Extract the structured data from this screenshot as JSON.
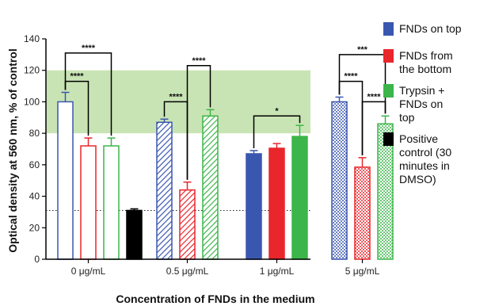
{
  "chart_data": {
    "type": "bar",
    "xlabel": "Concentration of FNDs in the medium",
    "ylabel": "Optical density at 560 nm, % of control",
    "ylim": [
      0,
      140
    ],
    "yticks": [
      0,
      20,
      40,
      60,
      80,
      100,
      120,
      140
    ],
    "grid": false,
    "legend_placement": "right",
    "highlight_band": {
      "from": 80,
      "to": 120,
      "color": "#c9e4b4"
    },
    "reference_line": {
      "y": 31,
      "style": "dotted"
    },
    "categories": [
      "0 μg/mL",
      "0.5 μg/mL",
      "1 μg/mL",
      "5 μg/mL"
    ],
    "series": [
      {
        "name": "FNDs on top",
        "color": "#3a57b0",
        "values": [
          100,
          87,
          67,
          100
        ],
        "errors": [
          6,
          2,
          2,
          3
        ],
        "fills": [
          "open",
          "hatch",
          "solid",
          "dots"
        ]
      },
      {
        "name": "FNDs from the bottom",
        "color": "#e8262c",
        "values": [
          72,
          44,
          70.5,
          58.5
        ],
        "errors": [
          5,
          5,
          3,
          6
        ],
        "fills": [
          "open",
          "hatch",
          "solid",
          "dots"
        ]
      },
      {
        "name": "Trypsin + FNDs on top",
        "color": "#3cb54a",
        "values": [
          72,
          91,
          78,
          86
        ],
        "errors": [
          5,
          4,
          7,
          5
        ],
        "fills": [
          "open",
          "hatch",
          "solid",
          "dots"
        ]
      },
      {
        "name": "Positive control (30 minutes in DMSO)",
        "color": "#000000",
        "values": [
          31,
          null,
          null,
          null
        ],
        "errors": [
          1,
          null,
          null,
          null
        ],
        "fills": [
          "solid"
        ]
      }
    ],
    "significance": [
      {
        "group": 0,
        "from": 0,
        "to": 1,
        "y": 113,
        "label": "****"
      },
      {
        "group": 0,
        "from": 0,
        "to": 2,
        "y": 131,
        "label": "****"
      },
      {
        "group": 1,
        "from": 0,
        "to": 1,
        "y": 100,
        "label": "****"
      },
      {
        "group": 1,
        "from": 1,
        "to": 2,
        "y": 123,
        "label": "****"
      },
      {
        "group": 2,
        "from": 0,
        "to": 2,
        "y": 91,
        "label": "*"
      },
      {
        "group": 3,
        "from": 0,
        "to": 1,
        "y": 113,
        "label": "****"
      },
      {
        "group": 3,
        "from": 1,
        "to": 2,
        "y": 100,
        "label": "****"
      },
      {
        "group": 3,
        "from": 0,
        "to": 2,
        "y": 130,
        "label": "***"
      }
    ]
  }
}
